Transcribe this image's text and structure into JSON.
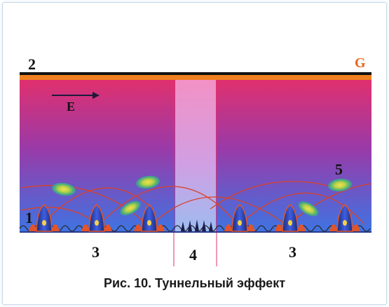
{
  "figure": {
    "caption": "Рис. 10. Туннельный эффект",
    "labels": {
      "label_1": "1",
      "label_2": "2",
      "label_3_left": "3",
      "label_3_right": "3",
      "label_4": "4",
      "label_5": "5",
      "label_E": "E",
      "label_G": "G"
    },
    "colors": {
      "gradient_top": "#e0306e",
      "gradient_mid": "#8a3fb0",
      "gradient_bottom": "#3c6fe0",
      "electrode_bar": "#111111",
      "electrode_stripe": "#f08020",
      "barrier_band": "#f3a8d4",
      "label_G": "#e8661e",
      "arcs": "#d9432a"
    }
  }
}
